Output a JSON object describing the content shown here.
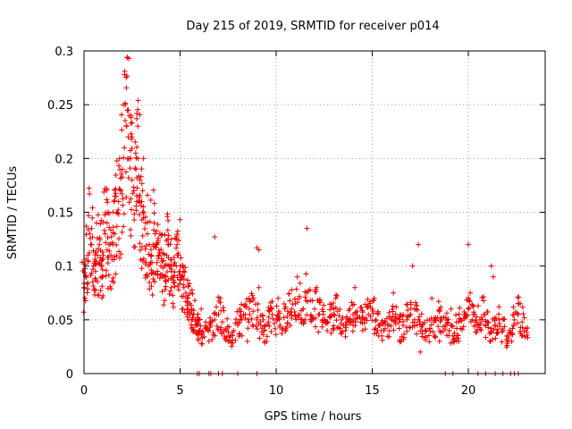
{
  "chart_data": {
    "type": "scatter",
    "title": "Day 215 of 2019, SRMTID for receiver p014",
    "xlabel": "GPS time / hours",
    "ylabel": "SRMTID / TECUs",
    "xlim": [
      0,
      24
    ],
    "ylim": [
      0,
      0.3
    ],
    "x_ticks": [
      0,
      5,
      10,
      15,
      20
    ],
    "x_tick_labels": [
      "0",
      "5",
      "10",
      "15",
      "20"
    ],
    "y_ticks": [
      0,
      0.05,
      0.1,
      0.15,
      0.2,
      0.25,
      0.3
    ],
    "y_tick_labels": [
      "0",
      "0.05",
      "0.1",
      "0.15",
      "0.2",
      "0.25",
      "0.3"
    ],
    "grid": true,
    "marker": "plus",
    "series": [
      {
        "name": "SRMTID",
        "color": "#ee0000",
        "x": [
          0.0,
          0.1,
          0.2,
          0.3,
          0.4,
          0.5,
          0.6,
          0.7,
          0.8,
          0.9,
          1.0,
          1.1,
          1.2,
          1.3,
          1.4,
          1.5,
          1.6,
          1.7,
          1.8,
          1.9,
          2.0,
          2.1,
          2.2,
          2.3,
          2.4,
          2.5,
          2.6,
          2.7,
          2.8,
          2.9,
          3.0,
          3.1,
          3.2,
          3.3,
          3.4,
          3.5,
          3.6,
          3.7,
          3.8,
          3.9,
          4.0,
          4.1,
          4.2,
          4.3,
          4.4,
          4.5,
          4.6,
          4.7,
          4.8,
          4.9,
          5.0,
          5.1,
          5.2,
          5.3,
          5.4,
          5.5,
          5.6,
          5.7,
          5.8,
          5.9,
          6.0,
          6.2,
          6.4,
          6.6,
          6.8,
          7.0,
          7.2,
          7.4,
          7.6,
          7.8,
          8.0,
          8.2,
          8.4,
          8.6,
          8.8,
          9.0,
          9.2,
          9.4,
          9.6,
          9.8,
          10.0,
          10.2,
          10.4,
          10.6,
          10.8,
          11.0,
          11.2,
          11.4,
          11.6,
          11.8,
          12.0,
          12.2,
          12.4,
          12.6,
          12.8,
          13.0,
          13.2,
          13.4,
          13.6,
          13.8,
          14.0,
          14.2,
          14.4,
          14.6,
          14.8,
          15.0,
          15.2,
          15.4,
          15.6,
          15.8,
          16.0,
          16.2,
          16.4,
          16.6,
          16.8,
          17.0,
          17.2,
          17.4,
          17.6,
          17.8,
          18.0,
          18.2,
          18.4,
          18.6,
          18.8,
          19.0,
          19.2,
          19.4,
          19.6,
          19.8,
          20.0,
          20.2,
          20.4,
          20.6,
          20.8,
          21.0,
          21.2,
          21.4,
          21.6,
          21.8,
          22.0,
          22.2,
          22.4,
          22.6,
          22.8,
          23.0,
          0.05,
          0.35,
          0.65,
          0.95,
          1.25,
          1.55,
          1.85,
          2.15,
          2.45,
          2.75,
          3.05,
          3.35,
          3.65,
          3.95,
          4.25,
          4.55,
          4.85,
          5.15,
          5.45,
          6.1,
          6.5,
          7.1,
          7.5,
          8.1,
          8.5,
          9.1,
          9.5,
          10.1,
          10.5,
          11.1,
          11.5,
          12.1,
          12.5,
          13.1,
          13.5,
          14.1,
          14.5,
          15.1,
          15.5,
          16.1,
          16.5,
          17.1,
          17.5,
          18.1,
          18.5,
          19.1,
          19.5,
          20.1,
          20.5,
          21.3,
          22.7,
          2.3,
          2.35,
          2.5,
          2.8,
          3.1,
          11.6,
          17.4,
          20.0,
          21.2,
          6.8,
          9.0,
          9.1,
          5.9,
          6.0,
          6.5,
          6.6,
          7.0,
          7.2,
          8.0,
          9.0,
          18.8,
          19.2,
          20.5,
          20.9,
          21.4,
          21.8,
          22.2,
          22.4,
          22.6
        ],
        "y": [
          0.08,
          0.09,
          0.11,
          0.13,
          0.12,
          0.1,
          0.095,
          0.11,
          0.12,
          0.1,
          0.11,
          0.13,
          0.14,
          0.12,
          0.11,
          0.12,
          0.13,
          0.15,
          0.16,
          0.17,
          0.19,
          0.21,
          0.23,
          0.22,
          0.2,
          0.18,
          0.17,
          0.19,
          0.2,
          0.18,
          0.16,
          0.15,
          0.14,
          0.13,
          0.12,
          0.11,
          0.12,
          0.13,
          0.12,
          0.11,
          0.1,
          0.09,
          0.1,
          0.11,
          0.12,
          0.1,
          0.09,
          0.085,
          0.1,
          0.11,
          0.1,
          0.09,
          0.08,
          0.075,
          0.07,
          0.065,
          0.06,
          0.055,
          0.05,
          0.045,
          0.04,
          0.038,
          0.042,
          0.045,
          0.05,
          0.055,
          0.048,
          0.04,
          0.035,
          0.04,
          0.045,
          0.05,
          0.055,
          0.06,
          0.058,
          0.05,
          0.045,
          0.04,
          0.048,
          0.055,
          0.05,
          0.045,
          0.052,
          0.058,
          0.06,
          0.065,
          0.07,
          0.06,
          0.075,
          0.068,
          0.06,
          0.055,
          0.05,
          0.048,
          0.052,
          0.055,
          0.058,
          0.05,
          0.045,
          0.05,
          0.055,
          0.052,
          0.048,
          0.05,
          0.055,
          0.06,
          0.05,
          0.045,
          0.04,
          0.045,
          0.05,
          0.048,
          0.042,
          0.045,
          0.05,
          0.055,
          0.06,
          0.05,
          0.045,
          0.04,
          0.042,
          0.048,
          0.052,
          0.05,
          0.045,
          0.04,
          0.035,
          0.042,
          0.05,
          0.055,
          0.06,
          0.05,
          0.045,
          0.05,
          0.055,
          0.048,
          0.042,
          0.045,
          0.05,
          0.04,
          0.035,
          0.038,
          0.05,
          0.055,
          0.048,
          0.042,
          0.07,
          0.12,
          0.14,
          0.09,
          0.15,
          0.16,
          0.2,
          0.25,
          0.24,
          0.16,
          0.17,
          0.1,
          0.14,
          0.13,
          0.09,
          0.1,
          0.12,
          0.06,
          0.05,
          0.06,
          0.03,
          0.07,
          0.03,
          0.06,
          0.03,
          0.08,
          0.03,
          0.07,
          0.04,
          0.09,
          0.05,
          0.08,
          0.05,
          0.07,
          0.045,
          0.08,
          0.04,
          0.07,
          0.035,
          0.075,
          0.03,
          0.1,
          0.02,
          0.07,
          0.03,
          0.06,
          0.03,
          0.075,
          0.045,
          0.09,
          0.065,
          0.245,
          0.24,
          0.22,
          0.23,
          0.2,
          0.135,
          0.12,
          0.12,
          0.1,
          0.127,
          0.117,
          0.115,
          0.0,
          0.0,
          0.0,
          0.0,
          0.0,
          0.0,
          0.0,
          0.0,
          0.0,
          0.0,
          0.0,
          0.0,
          0.0,
          0.0,
          0.0,
          0.0,
          0.0
        ]
      }
    ]
  }
}
